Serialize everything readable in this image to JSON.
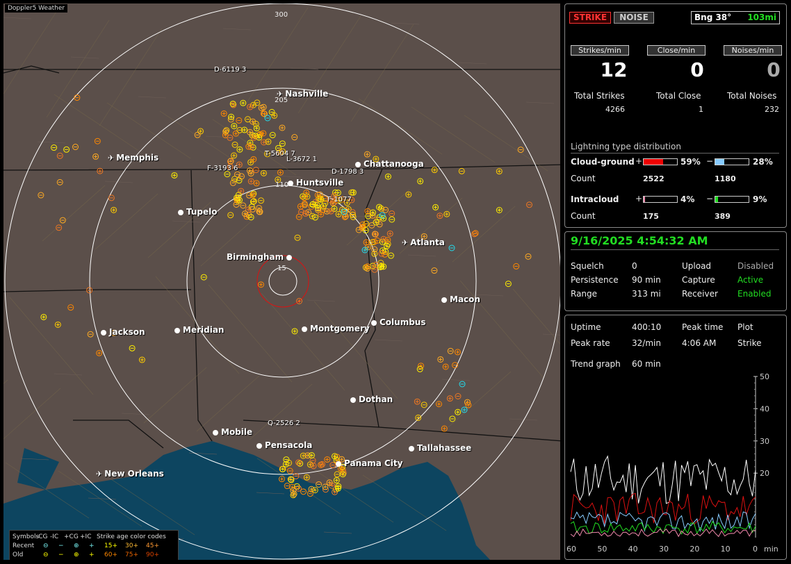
{
  "app_title": "Doppler5 Weather",
  "map": {
    "ring_labels": [
      "300",
      "205",
      "110",
      "15"
    ],
    "cities": [
      {
        "name": "Nashville",
        "icon": "airport-icon"
      },
      {
        "name": "Memphis",
        "icon": "airport-icon"
      },
      {
        "name": "Chattanooga",
        "icon": "city-dot-icon"
      },
      {
        "name": "Huntsville",
        "icon": "city-dot-icon"
      },
      {
        "name": "Tupelo",
        "icon": "city-dot-icon"
      },
      {
        "name": "Atlanta",
        "icon": "airport-icon"
      },
      {
        "name": "Birmingham",
        "icon": "city-dot-icon"
      },
      {
        "name": "Macon",
        "icon": "city-dot-icon"
      },
      {
        "name": "Jackson",
        "icon": "city-dot-icon"
      },
      {
        "name": "Meridian",
        "icon": "city-dot-icon"
      },
      {
        "name": "Montgomery",
        "icon": "city-dot-icon"
      },
      {
        "name": "Columbus",
        "icon": "city-dot-icon"
      },
      {
        "name": "Dothan",
        "icon": "city-dot-icon"
      },
      {
        "name": "Mobile",
        "icon": "city-dot-icon"
      },
      {
        "name": "Pensacola",
        "icon": "city-dot-icon"
      },
      {
        "name": "Tallahassee",
        "icon": "city-dot-icon"
      },
      {
        "name": "Panama City",
        "icon": "city-dot-icon"
      },
      {
        "name": "New Orleans",
        "icon": "airport-icon"
      }
    ],
    "storm_labels": [
      "D-6119 3",
      "T-5604 7",
      "L-3672 1",
      "D-1798 3",
      "F-3193 6",
      "F-1077",
      "Q-2526 2"
    ]
  },
  "legend": {
    "row1": [
      "Symbols",
      "-CG",
      "-IC",
      "+CG",
      "+IC",
      "Strike age color codes"
    ],
    "recent_label": "Recent",
    "old_label": "Old",
    "recent_ages": [
      "15+",
      "30+",
      "45+"
    ],
    "old_ages": [
      "60+",
      "75+",
      "90+"
    ]
  },
  "top": {
    "strike_btn": "STRIKE",
    "noise_btn": "NOISE",
    "bearing_label": "Bng 38°",
    "bearing_distance": "103mi",
    "strikes_min_btn": "Strikes/min",
    "close_min_btn": "Close/min",
    "noises_min_btn": "Noises/min",
    "strikes_min": "12",
    "close_min": "0",
    "noises_min": "0",
    "total_strikes_label": "Total Strikes",
    "total_close_label": "Total Close",
    "total_noises_label": "Total Noises",
    "total_strikes": "4266",
    "total_close": "1",
    "total_noises": "232",
    "dist_title": "Lightning type distribution",
    "cg_label": "Cloud-ground",
    "ic_label": "Intracloud",
    "count_label": "Count",
    "plus": "+",
    "minus": "−",
    "cg_pos_pct": "59%",
    "cg_neg_pct": "28%",
    "cg_pos_count": "2522",
    "cg_neg_count": "1180",
    "ic_pos_pct": "4%",
    "ic_neg_pct": "9%",
    "ic_pos_count": "175",
    "ic_neg_count": "389",
    "cg_pos_frac": 0.59,
    "cg_neg_frac": 0.28,
    "ic_pos_frac": 0.04,
    "ic_neg_frac": 0.09
  },
  "status": {
    "datetime": "9/16/2025 4:54:32 AM",
    "squelch_label": "Squelch",
    "squelch": "0",
    "persistence_label": "Persistence",
    "persistence": "90 min",
    "range_label": "Range",
    "range": "313 mi",
    "upload_label": "Upload",
    "upload": "Disabled",
    "capture_label": "Capture",
    "capture": "Active",
    "receiver_label": "Receiver",
    "receiver": "Enabled"
  },
  "trend": {
    "uptime_label": "Uptime",
    "uptime": "400:10",
    "peak_time_label": "Peak time",
    "peak_time": "4:06 AM",
    "plot_label": "Plot",
    "plot": "Strike",
    "peak_rate_label": "Peak rate",
    "peak_rate": "32/min",
    "trend_graph_label": "Trend graph",
    "trend_graph": "60 min",
    "y_ticks": [
      "50",
      "40",
      "30",
      "20"
    ],
    "x_ticks": [
      "60",
      "50",
      "40",
      "30",
      "20",
      "10",
      "0"
    ],
    "x_unit": "min"
  },
  "colors": {
    "map_bg": "#5b4f4a",
    "water": "#0d4560",
    "green": "#22dd22",
    "red": "#dd1111",
    "light_blue": "#88ccff",
    "pink": "#ee88aa"
  }
}
